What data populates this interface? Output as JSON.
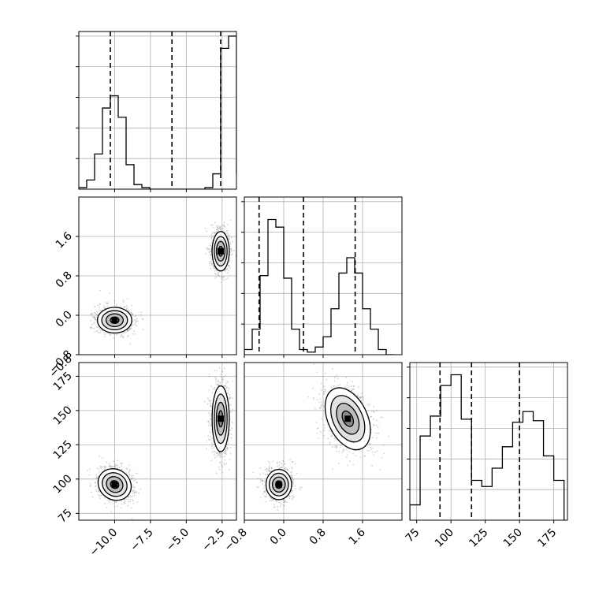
{
  "chart_data": {
    "type": "corner",
    "parameters": [
      {
        "index": 0,
        "range": [
          -12.5,
          -1.5
        ],
        "ticks": [
          -10.0,
          -7.5,
          -5.0,
          -2.5
        ],
        "tick_labels": [
          "−10.0",
          "−7.5",
          "−5.0",
          "−2.5"
        ],
        "quantiles": [
          -10.3,
          -6.0,
          -2.6
        ],
        "hist": {
          "edges": [
            -12.5,
            -11.95,
            -11.4,
            -10.85,
            -10.3,
            -9.75,
            -9.2,
            -8.65,
            -8.1,
            -7.55,
            -7.0,
            -6.45,
            -5.9,
            -5.35,
            -4.8,
            -4.25,
            -3.7,
            -3.15,
            -2.6,
            -2.05,
            -1.5
          ],
          "counts": [
            1,
            6,
            23,
            53,
            61,
            47,
            16,
            3,
            1,
            0,
            0,
            0,
            0,
            0,
            0,
            0,
            1,
            10,
            92,
            100,
            10
          ]
        },
        "hist_ymax": 100
      },
      {
        "index": 1,
        "range": [
          -0.8,
          2.4
        ],
        "ticks": [
          -0.8,
          0.0,
          0.8,
          1.6
        ],
        "tick_labels": [
          "−0.8",
          "0.0",
          "0.8",
          "1.6"
        ],
        "quantiles": [
          -0.5,
          0.4,
          1.45
        ],
        "hist": {
          "edges": [
            -0.8,
            -0.64,
            -0.48,
            -0.32,
            -0.16,
            0.0,
            0.16,
            0.32,
            0.48,
            0.64,
            0.8,
            0.96,
            1.12,
            1.28,
            1.44,
            1.6,
            1.76,
            1.92,
            2.08,
            2.24
          ],
          "counts": [
            2,
            10,
            31,
            53,
            50,
            30,
            10,
            2,
            1,
            3,
            7,
            18,
            32,
            38,
            32,
            18,
            10,
            2,
            0
          ]
        },
        "hist_ymax": 60
      },
      {
        "index": 2,
        "range": [
          70,
          185
        ],
        "ticks": [
          75,
          100,
          125,
          150,
          175
        ],
        "tick_labels": [
          "75",
          "100",
          "125",
          "150",
          "175"
        ],
        "quantiles": [
          92,
          115,
          150
        ],
        "hist": {
          "edges": [
            70,
            77.5,
            85,
            92.5,
            100,
            107.5,
            115,
            122.5,
            130,
            137.5,
            145,
            152.5,
            160,
            167.5,
            175,
            182.5
          ],
          "counts": [
            10,
            55,
            68,
            88,
            95,
            66,
            26,
            22,
            34,
            48,
            64,
            71,
            65,
            42,
            26
          ],
          "counts_note": ""
        },
        "hist_ymax": 100
      }
    ],
    "clusters": [
      {
        "center": [
          -10.0,
          -0.1,
          96
        ],
        "spread": [
          0.6,
          0.13,
          5.5
        ],
        "weight": 0.5
      },
      {
        "center": [
          -2.6,
          1.3,
          144
        ],
        "spread": [
          0.3,
          0.2,
          12
        ],
        "weight": 0.5
      }
    ],
    "contour_levels": [
      0.5,
      1.0,
      1.5,
      2.0
    ],
    "grid": true,
    "colors": {
      "ink": "#000000",
      "grid": "#b0b0b0",
      "density": "#808080"
    }
  }
}
